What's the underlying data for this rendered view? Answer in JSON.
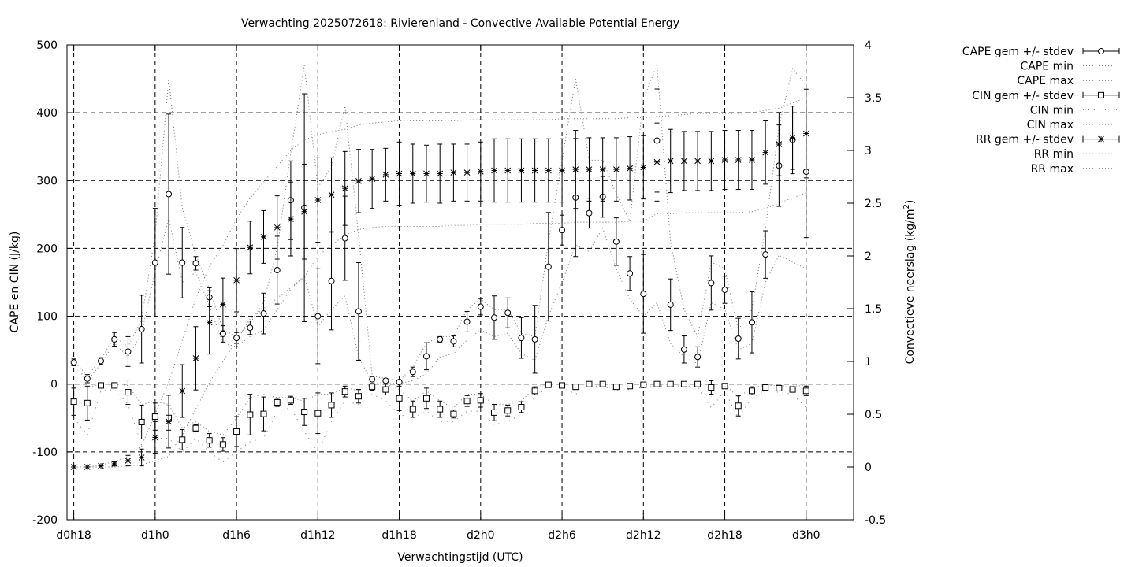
{
  "chart_data": {
    "type": "line",
    "title": "Verwachting 2025072618: Rivierenland - Convective Available Potential Energy",
    "xlabel": "Verwachtingstijd (UTC)",
    "ylabel": "CAPE en CIN (J/kg)",
    "y2label": "Convectieve neerslag (kg/m",
    "y2label_sup": "2",
    "y2label_end": ")",
    "xlim": [
      -0.5,
      57.5
    ],
    "ylim": [
      -200,
      500
    ],
    "y2lim": [
      -0.5,
      4
    ],
    "x_ticks": [
      {
        "x": 0,
        "label": "d0h18"
      },
      {
        "x": 6,
        "label": "d1h0"
      },
      {
        "x": 12,
        "label": "d1h6"
      },
      {
        "x": 18,
        "label": "d1h12"
      },
      {
        "x": 24,
        "label": "d1h18"
      },
      {
        "x": 30,
        "label": "d2h0"
      },
      {
        "x": 36,
        "label": "d2h6"
      },
      {
        "x": 42,
        "label": "d2h12"
      },
      {
        "x": 48,
        "label": "d2h18"
      },
      {
        "x": 54,
        "label": "d3h0"
      }
    ],
    "y_ticks": [
      {
        "v": -200,
        "label": "-200"
      },
      {
        "v": -100,
        "label": "-100"
      },
      {
        "v": 0,
        "label": "0"
      },
      {
        "v": 100,
        "label": "100"
      },
      {
        "v": 200,
        "label": "200"
      },
      {
        "v": 300,
        "label": "300"
      },
      {
        "v": 400,
        "label": "400"
      },
      {
        "v": 500,
        "label": "500"
      }
    ],
    "y2_ticks": [
      {
        "v": -0.5,
        "label": "-0.5"
      },
      {
        "v": 0,
        "label": "0"
      },
      {
        "v": 0.5,
        "label": "0.5"
      },
      {
        "v": 1,
        "label": "1"
      },
      {
        "v": 1.5,
        "label": "1.5"
      },
      {
        "v": 2,
        "label": "2"
      },
      {
        "v": 2.5,
        "label": "2.5"
      },
      {
        "v": 3,
        "label": "3"
      },
      {
        "v": 3.5,
        "label": "3.5"
      },
      {
        "v": 4,
        "label": "4"
      }
    ],
    "grid": true,
    "legend_position": "outside-top-right",
    "legend": [
      {
        "label": "CAPE gem +/- stdev",
        "style": "errorbar-circle"
      },
      {
        "label": "CAPE min",
        "style": "dotted"
      },
      {
        "label": "CAPE max",
        "style": "dotted"
      },
      {
        "label": "CIN gem +/- stdev",
        "style": "errorbar-square"
      },
      {
        "label": "CIN min",
        "style": "dotted-sparse"
      },
      {
        "label": "CIN max",
        "style": "dotted"
      },
      {
        "label": "RR gem +/- stdev",
        "style": "errorbar-star"
      },
      {
        "label": "RR min",
        "style": "dotted"
      },
      {
        "label": "RR max",
        "style": "dotted"
      }
    ],
    "cape": {
      "axis": "y1",
      "x": [
        0,
        1,
        2,
        3,
        4,
        5,
        6,
        7,
        8,
        9,
        10,
        11,
        12,
        13,
        14,
        15,
        16,
        17,
        18,
        19,
        20,
        21,
        22,
        23,
        24,
        25,
        26,
        27,
        28,
        29,
        30,
        31,
        32,
        33,
        34,
        35,
        36,
        37,
        38,
        39,
        40,
        41,
        42,
        43,
        44,
        45,
        46,
        47,
        48,
        49,
        50,
        51,
        52,
        53,
        54
      ],
      "mean": [
        32,
        8,
        34,
        66,
        48,
        81,
        179,
        280,
        179,
        178,
        128,
        74,
        68,
        83,
        104,
        168,
        271,
        260,
        100,
        152,
        215,
        107,
        7,
        5,
        3,
        18,
        41,
        66,
        63,
        92,
        114,
        98,
        105,
        68,
        66,
        173,
        227,
        275,
        252,
        276,
        210,
        163,
        133,
        359,
        117,
        51,
        40,
        149,
        139,
        67,
        91,
        191,
        322,
        360,
        313
      ],
      "stdev": [
        5,
        6,
        5,
        10,
        22,
        50,
        80,
        118,
        52,
        10,
        14,
        12,
        8,
        10,
        30,
        50,
        58,
        168,
        70,
        72,
        62,
        72,
        3,
        3,
        2,
        7,
        20,
        4,
        8,
        15,
        12,
        32,
        22,
        30,
        50,
        80,
        22,
        87,
        22,
        30,
        35,
        25,
        58,
        76,
        38,
        20,
        15,
        40,
        20,
        30,
        45,
        35,
        60,
        50,
        97
      ],
      "min": [
        30,
        5,
        30,
        60,
        40,
        75,
        165,
        245,
        150,
        165,
        115,
        60,
        55,
        70,
        80,
        110,
        140,
        160,
        85,
        110,
        130,
        40,
        2,
        2,
        1,
        5,
        15,
        40,
        45,
        65,
        80,
        70,
        75,
        45,
        35,
        100,
        150,
        205,
        195,
        230,
        170,
        125,
        100,
        120,
        60,
        40,
        30,
        120,
        110,
        50,
        60,
        150,
        190,
        180,
        170
      ],
      "max": [
        35,
        12,
        36,
        70,
        55,
        95,
        220,
        450,
        260,
        190,
        140,
        80,
        70,
        90,
        120,
        200,
        340,
        470,
        290,
        320,
        410,
        220,
        12,
        8,
        5,
        25,
        60,
        70,
        70,
        110,
        125,
        110,
        110,
        75,
        70,
        210,
        330,
        450,
        330,
        330,
        280,
        240,
        420,
        470,
        210,
        110,
        70,
        180,
        170,
        80,
        110,
        230,
        380,
        465,
        440
      ]
    },
    "cin": {
      "axis": "y1",
      "x": [
        0,
        1,
        2,
        3,
        4,
        5,
        6,
        7,
        8,
        9,
        10,
        11,
        12,
        13,
        14,
        15,
        16,
        17,
        18,
        19,
        20,
        21,
        22,
        23,
        24,
        25,
        26,
        27,
        28,
        29,
        30,
        31,
        32,
        33,
        34,
        35,
        36,
        37,
        38,
        39,
        40,
        41,
        42,
        43,
        44,
        45,
        46,
        47,
        48,
        49,
        50,
        51,
        52,
        53,
        54
      ],
      "mean": [
        -26,
        -28,
        -2,
        -2,
        -12,
        -56,
        -48,
        -50,
        -82,
        -65,
        -83,
        -89,
        -70,
        -45,
        -44,
        -27,
        -24,
        -41,
        -43,
        -31,
        -11,
        -18,
        -4,
        -8,
        -21,
        -37,
        -21,
        -37,
        -44,
        -25,
        -24,
        -42,
        -39,
        -34,
        -10,
        -1,
        -2,
        -4,
        0,
        0,
        -4,
        -3,
        -1,
        0,
        0,
        0,
        0,
        -5,
        -3,
        -32,
        -10,
        -5,
        -6,
        -8,
        -10
      ],
      "stdev": [
        20,
        25,
        2,
        2,
        18,
        25,
        20,
        18,
        15,
        5,
        10,
        10,
        22,
        30,
        25,
        6,
        6,
        20,
        30,
        18,
        8,
        10,
        5,
        8,
        18,
        12,
        15,
        12,
        6,
        8,
        10,
        12,
        8,
        8,
        6,
        2,
        2,
        4,
        2,
        2,
        3,
        2,
        2,
        2,
        2,
        2,
        2,
        10,
        3,
        15,
        6,
        3,
        3,
        3,
        7
      ],
      "min": [
        -50,
        -75,
        -10,
        -8,
        -30,
        -90,
        -80,
        -80,
        -100,
        -80,
        -100,
        -115,
        -100,
        -85,
        -80,
        -40,
        -35,
        -70,
        -100,
        -55,
        -25,
        -30,
        -15,
        -25,
        -45,
        -50,
        -40,
        -55,
        -55,
        -40,
        -40,
        -60,
        -55,
        -45,
        -20,
        -3,
        -5,
        -15,
        -3,
        -3,
        -10,
        -8,
        -5,
        -3,
        -3,
        -3,
        -3,
        -35,
        -10,
        -50,
        -20,
        -10,
        -12,
        -15,
        -35
      ],
      "max": [
        -5,
        -5,
        0,
        0,
        -2,
        -30,
        -25,
        -30,
        -65,
        -55,
        -70,
        -75,
        -50,
        -20,
        -15,
        -20,
        -20,
        -25,
        -15,
        -15,
        -5,
        -10,
        0,
        0,
        -8,
        -25,
        -10,
        -25,
        -35,
        -15,
        -15,
        -30,
        -30,
        -25,
        -5,
        0,
        0,
        0,
        0,
        0,
        0,
        0,
        0,
        0,
        0,
        0,
        0,
        0,
        0,
        -20,
        -5,
        -2,
        -2,
        -3,
        -2
      ]
    },
    "rr": {
      "axis": "y2",
      "x": [
        0,
        1,
        2,
        3,
        4,
        5,
        6,
        7,
        8,
        9,
        10,
        11,
        12,
        13,
        14,
        15,
        16,
        17,
        18,
        19,
        20,
        21,
        22,
        23,
        24,
        25,
        26,
        27,
        28,
        29,
        30,
        31,
        32,
        33,
        34,
        35,
        36,
        37,
        38,
        39,
        40,
        41,
        42,
        43,
        44,
        45,
        46,
        47,
        48,
        49,
        50,
        51,
        52,
        53,
        54
      ],
      "mean": [
        0,
        0,
        0.01,
        0.03,
        0.06,
        0.09,
        0.28,
        0.43,
        0.72,
        1.03,
        1.37,
        1.54,
        1.77,
        2.08,
        2.18,
        2.27,
        2.35,
        2.42,
        2.53,
        2.58,
        2.64,
        2.71,
        2.73,
        2.77,
        2.78,
        2.78,
        2.78,
        2.78,
        2.79,
        2.79,
        2.8,
        2.81,
        2.81,
        2.81,
        2.81,
        2.81,
        2.81,
        2.82,
        2.82,
        2.82,
        2.82,
        2.83,
        2.84,
        2.89,
        2.9,
        2.9,
        2.9,
        2.9,
        2.91,
        2.91,
        2.91,
        2.98,
        3.06,
        3.12,
        3.16
      ],
      "stdev": [
        0,
        0,
        0,
        0.02,
        0.05,
        0.08,
        0.15,
        0.25,
        0.25,
        0.3,
        0.3,
        0.25,
        0.3,
        0.25,
        0.25,
        0.3,
        0.35,
        0.45,
        0.4,
        0.35,
        0.35,
        0.3,
        0.28,
        0.25,
        0.3,
        0.28,
        0.27,
        0.28,
        0.27,
        0.27,
        0.28,
        0.3,
        0.3,
        0.3,
        0.3,
        0.3,
        0.3,
        0.37,
        0.3,
        0.3,
        0.3,
        0.3,
        0.3,
        0.37,
        0.3,
        0.28,
        0.28,
        0.28,
        0.28,
        0.28,
        0.28,
        0.3,
        0.3,
        0.3,
        0.42
      ],
      "min": [
        0,
        0,
        0,
        0,
        0.01,
        0.02,
        0.06,
        0.1,
        0.3,
        0.55,
        0.8,
        1.0,
        1.2,
        1.4,
        1.5,
        1.6,
        1.7,
        1.8,
        2.0,
        2.1,
        2.2,
        2.25,
        2.27,
        2.28,
        2.28,
        2.28,
        2.28,
        2.28,
        2.29,
        2.29,
        2.3,
        2.3,
        2.3,
        2.3,
        2.31,
        2.31,
        2.31,
        2.32,
        2.32,
        2.32,
        2.32,
        2.33,
        2.33,
        2.4,
        2.4,
        2.41,
        2.41,
        2.41,
        2.41,
        2.41,
        2.42,
        2.45,
        2.5,
        2.55,
        2.6
      ],
      "max": [
        0,
        0,
        0.02,
        0.05,
        0.1,
        0.2,
        0.5,
        0.8,
        1.2,
        1.6,
        1.9,
        2.1,
        2.35,
        2.55,
        2.7,
        2.85,
        3.0,
        3.1,
        3.15,
        3.18,
        3.2,
        3.24,
        3.26,
        3.27,
        3.28,
        3.28,
        3.28,
        3.28,
        3.28,
        3.29,
        3.29,
        3.29,
        3.29,
        3.29,
        3.29,
        3.29,
        3.3,
        3.3,
        3.3,
        3.3,
        3.3,
        3.31,
        3.31,
        3.32,
        3.33,
        3.34,
        3.35,
        3.35,
        3.35,
        3.35,
        3.36,
        3.38,
        3.4,
        3.45,
        3.5
      ]
    }
  }
}
